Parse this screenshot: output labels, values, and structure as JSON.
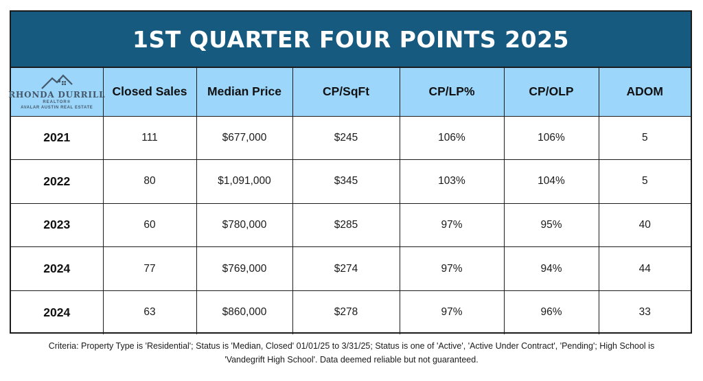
{
  "title": "1ST QUARTER FOUR POINTS 2025",
  "logo": {
    "icon": "house-roof-icon",
    "name": "RHONDA DURRILL",
    "realtor": "REALTOR®",
    "brokerage": "AVALAR AUSTIN REAL ESTATE"
  },
  "headers": [
    "Closed Sales",
    "Median Price",
    "CP/SqFt",
    "CP/LP%",
    "CP/OLP",
    "ADOM"
  ],
  "rows": [
    {
      "year": "2021",
      "closed_sales": "111",
      "median_price": "$677,000",
      "cp_sqft": "$245",
      "cp_lp": "106%",
      "cp_olp": "106%",
      "adom": "5"
    },
    {
      "year": "2022",
      "closed_sales": "80",
      "median_price": "$1,091,000",
      "cp_sqft": "$345",
      "cp_lp": "103%",
      "cp_olp": "104%",
      "adom": "5"
    },
    {
      "year": "2023",
      "closed_sales": "60",
      "median_price": "$780,000",
      "cp_sqft": "$285",
      "cp_lp": "97%",
      "cp_olp": "95%",
      "adom": "40"
    },
    {
      "year": "2024",
      "closed_sales": "77",
      "median_price": "$769,000",
      "cp_sqft": "$274",
      "cp_lp": "97%",
      "cp_olp": "94%",
      "adom": "44"
    },
    {
      "year": "2024",
      "closed_sales": "63",
      "median_price": "$860,000",
      "cp_sqft": "$278",
      "cp_lp": "97%",
      "cp_olp": "96%",
      "adom": "33"
    }
  ],
  "criteria": {
    "line1": "Criteria:  Property Type is 'Residential'; Status is 'Median, Closed' 01/01/25 to 3/31/25; Status is one of 'Active', 'Active Under Contract', 'Pending'; High School is",
    "line2": "'Vandegrift High School'. Data deemed reliable but not guaranteed."
  },
  "colors": {
    "title_bg": "#175a80",
    "header_bg": "#9cd6fb",
    "border": "#1b1b1b",
    "logo": "#45586a"
  }
}
